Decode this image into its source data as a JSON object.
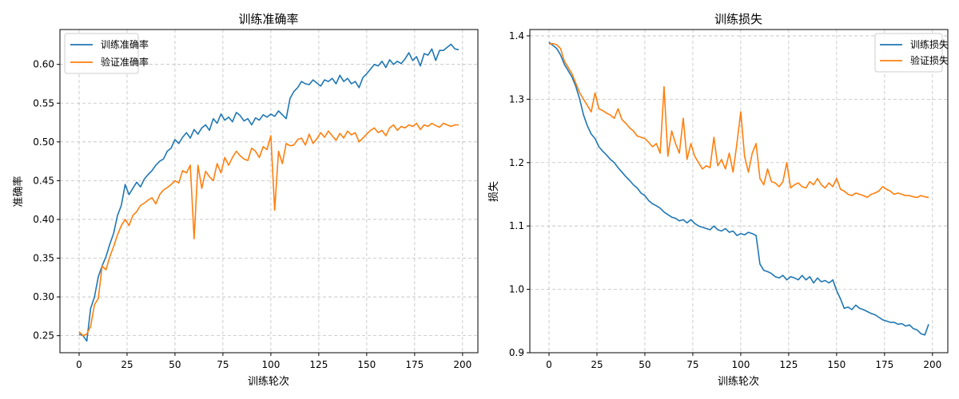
{
  "chart_data": [
    {
      "id": "acc",
      "type": "line",
      "title": "训练准确率",
      "xlabel": "训练轮次",
      "ylabel": "准确率",
      "xlim": [
        -10,
        208
      ],
      "ylim": [
        0.228,
        0.645
      ],
      "xticks": [
        0,
        25,
        50,
        75,
        100,
        125,
        150,
        175,
        200
      ],
      "xtick_labels": [
        "0",
        "25",
        "50",
        "75",
        "100",
        "125",
        "150",
        "175",
        "200"
      ],
      "yticks": [
        0.25,
        0.3,
        0.35,
        0.4,
        0.45,
        0.5,
        0.55,
        0.6
      ],
      "ytick_labels": [
        "0.25",
        "0.30",
        "0.35",
        "0.40",
        "0.45",
        "0.50",
        "0.55",
        "0.60"
      ],
      "grid": true,
      "legend_position": "top-left",
      "series": [
        {
          "name": "训练准确率",
          "color": "#1f77b4",
          "x": [
            0,
            2,
            4,
            6,
            8,
            10,
            12,
            14,
            16,
            18,
            20,
            22,
            24,
            26,
            28,
            30,
            32,
            34,
            36,
            38,
            40,
            42,
            44,
            46,
            48,
            50,
            52,
            54,
            56,
            58,
            60,
            62,
            64,
            66,
            68,
            70,
            72,
            74,
            76,
            78,
            80,
            82,
            84,
            86,
            88,
            90,
            92,
            94,
            96,
            98,
            100,
            102,
            104,
            106,
            108,
            110,
            112,
            114,
            116,
            118,
            120,
            122,
            124,
            126,
            128,
            130,
            132,
            134,
            136,
            138,
            140,
            142,
            144,
            146,
            148,
            150,
            152,
            154,
            156,
            158,
            160,
            162,
            164,
            166,
            168,
            170,
            172,
            174,
            176,
            178,
            180,
            182,
            184,
            186,
            188,
            190,
            192,
            194,
            196,
            198
          ],
          "values": [
            0.252,
            0.25,
            0.243,
            0.285,
            0.3,
            0.326,
            0.34,
            0.352,
            0.368,
            0.382,
            0.405,
            0.418,
            0.445,
            0.432,
            0.44,
            0.448,
            0.442,
            0.452,
            0.458,
            0.463,
            0.47,
            0.475,
            0.478,
            0.488,
            0.492,
            0.503,
            0.498,
            0.506,
            0.512,
            0.505,
            0.516,
            0.51,
            0.518,
            0.522,
            0.515,
            0.53,
            0.524,
            0.536,
            0.528,
            0.532,
            0.526,
            0.538,
            0.534,
            0.527,
            0.53,
            0.522,
            0.531,
            0.528,
            0.535,
            0.532,
            0.536,
            0.533,
            0.54,
            0.535,
            0.53,
            0.556,
            0.565,
            0.57,
            0.578,
            0.575,
            0.574,
            0.58,
            0.576,
            0.572,
            0.58,
            0.578,
            0.582,
            0.575,
            0.586,
            0.578,
            0.582,
            0.575,
            0.578,
            0.57,
            0.583,
            0.588,
            0.594,
            0.6,
            0.598,
            0.604,
            0.596,
            0.606,
            0.6,
            0.604,
            0.601,
            0.607,
            0.615,
            0.605,
            0.61,
            0.598,
            0.614,
            0.612,
            0.62,
            0.605,
            0.618,
            0.618,
            0.622,
            0.626,
            0.62,
            0.619
          ]
        },
        {
          "name": "验证准确率",
          "color": "#ff7f0e",
          "x": [
            0,
            2,
            4,
            6,
            8,
            10,
            12,
            14,
            16,
            18,
            20,
            22,
            24,
            26,
            28,
            30,
            32,
            34,
            36,
            38,
            40,
            42,
            44,
            46,
            48,
            50,
            52,
            54,
            56,
            58,
            60,
            62,
            64,
            66,
            68,
            70,
            72,
            74,
            76,
            78,
            80,
            82,
            84,
            86,
            88,
            90,
            92,
            94,
            96,
            98,
            100,
            102,
            104,
            106,
            108,
            110,
            112,
            114,
            116,
            118,
            120,
            122,
            124,
            126,
            128,
            130,
            132,
            134,
            136,
            138,
            140,
            142,
            144,
            146,
            148,
            150,
            152,
            154,
            156,
            158,
            160,
            162,
            164,
            166,
            168,
            170,
            172,
            174,
            176,
            178,
            180,
            182,
            184,
            186,
            188,
            190,
            192,
            194,
            196,
            198
          ],
          "values": [
            0.255,
            0.25,
            0.252,
            0.262,
            0.29,
            0.298,
            0.34,
            0.335,
            0.352,
            0.365,
            0.38,
            0.392,
            0.4,
            0.392,
            0.405,
            0.41,
            0.418,
            0.421,
            0.425,
            0.428,
            0.42,
            0.432,
            0.438,
            0.441,
            0.445,
            0.45,
            0.447,
            0.463,
            0.46,
            0.47,
            0.375,
            0.47,
            0.44,
            0.462,
            0.455,
            0.45,
            0.472,
            0.46,
            0.48,
            0.47,
            0.48,
            0.488,
            0.482,
            0.478,
            0.476,
            0.492,
            0.488,
            0.48,
            0.494,
            0.49,
            0.508,
            0.412,
            0.488,
            0.472,
            0.498,
            0.495,
            0.496,
            0.503,
            0.505,
            0.496,
            0.51,
            0.498,
            0.504,
            0.512,
            0.506,
            0.514,
            0.508,
            0.502,
            0.511,
            0.505,
            0.514,
            0.509,
            0.512,
            0.5,
            0.505,
            0.51,
            0.515,
            0.518,
            0.512,
            0.515,
            0.508,
            0.518,
            0.522,
            0.515,
            0.52,
            0.518,
            0.522,
            0.52,
            0.524,
            0.516,
            0.522,
            0.52,
            0.524,
            0.521,
            0.519,
            0.524,
            0.522,
            0.52,
            0.522,
            0.522
          ]
        }
      ]
    },
    {
      "id": "loss",
      "type": "line",
      "title": "训练损失",
      "xlabel": "训练轮次",
      "ylabel": "损失",
      "xlim": [
        -10,
        208
      ],
      "ylim": [
        0.9,
        1.41
      ],
      "xticks": [
        0,
        25,
        50,
        75,
        100,
        125,
        150,
        175,
        200
      ],
      "xtick_labels": [
        "0",
        "25",
        "50",
        "75",
        "100",
        "125",
        "150",
        "175",
        "200"
      ],
      "yticks": [
        0.9,
        1.0,
        1.1,
        1.2,
        1.3,
        1.4
      ],
      "ytick_labels": [
        "0.9",
        "1.0",
        "1.1",
        "1.2",
        "1.3",
        "1.4"
      ],
      "grid": true,
      "legend_position": "top-right",
      "series": [
        {
          "name": "训练损失",
          "color": "#1f77b4",
          "x": [
            0,
            2,
            4,
            6,
            8,
            10,
            12,
            14,
            16,
            18,
            20,
            22,
            24,
            26,
            28,
            30,
            32,
            34,
            36,
            38,
            40,
            42,
            44,
            46,
            48,
            50,
            52,
            54,
            56,
            58,
            60,
            62,
            64,
            66,
            68,
            70,
            72,
            74,
            76,
            78,
            80,
            82,
            84,
            86,
            88,
            90,
            92,
            94,
            96,
            98,
            100,
            102,
            104,
            106,
            108,
            110,
            112,
            114,
            116,
            118,
            120,
            122,
            124,
            126,
            128,
            130,
            132,
            134,
            136,
            138,
            140,
            142,
            144,
            146,
            148,
            150,
            152,
            154,
            156,
            158,
            160,
            162,
            164,
            166,
            168,
            170,
            172,
            174,
            176,
            178,
            180,
            182,
            184,
            186,
            188,
            190,
            192,
            194,
            196,
            198
          ],
          "values": [
            1.39,
            1.385,
            1.38,
            1.37,
            1.355,
            1.345,
            1.335,
            1.32,
            1.3,
            1.275,
            1.258,
            1.245,
            1.238,
            1.225,
            1.218,
            1.212,
            1.205,
            1.2,
            1.192,
            1.185,
            1.178,
            1.172,
            1.165,
            1.16,
            1.152,
            1.148,
            1.14,
            1.135,
            1.132,
            1.128,
            1.122,
            1.118,
            1.114,
            1.112,
            1.108,
            1.11,
            1.105,
            1.11,
            1.104,
            1.1,
            1.098,
            1.096,
            1.094,
            1.1,
            1.094,
            1.092,
            1.096,
            1.09,
            1.092,
            1.085,
            1.088,
            1.086,
            1.09,
            1.088,
            1.085,
            1.04,
            1.03,
            1.028,
            1.025,
            1.02,
            1.018,
            1.022,
            1.015,
            1.02,
            1.018,
            1.015,
            1.022,
            1.015,
            1.02,
            1.01,
            1.018,
            1.012,
            1.014,
            1.01,
            1.015,
            0.998,
            0.985,
            0.97,
            0.972,
            0.968,
            0.975,
            0.97,
            0.968,
            0.965,
            0.962,
            0.96,
            0.956,
            0.952,
            0.95,
            0.948,
            0.948,
            0.945,
            0.946,
            0.942,
            0.944,
            0.938,
            0.936,
            0.93,
            0.928,
            0.945
          ]
        },
        {
          "name": "验证损失",
          "color": "#ff7f0e",
          "x": [
            0,
            2,
            4,
            6,
            8,
            10,
            12,
            14,
            16,
            18,
            20,
            22,
            24,
            26,
            28,
            30,
            32,
            34,
            36,
            38,
            40,
            42,
            44,
            46,
            48,
            50,
            52,
            54,
            56,
            58,
            60,
            62,
            64,
            66,
            68,
            70,
            72,
            74,
            76,
            78,
            80,
            82,
            84,
            86,
            88,
            90,
            92,
            94,
            96,
            98,
            100,
            102,
            104,
            106,
            108,
            110,
            112,
            114,
            116,
            118,
            120,
            122,
            124,
            126,
            128,
            130,
            132,
            134,
            136,
            138,
            140,
            142,
            144,
            146,
            148,
            150,
            152,
            154,
            156,
            158,
            160,
            162,
            164,
            166,
            168,
            170,
            172,
            174,
            176,
            178,
            180,
            182,
            184,
            186,
            188,
            190,
            192,
            194,
            196,
            198
          ],
          "values": [
            1.387,
            1.388,
            1.386,
            1.38,
            1.36,
            1.35,
            1.34,
            1.325,
            1.31,
            1.3,
            1.29,
            1.28,
            1.31,
            1.285,
            1.282,
            1.278,
            1.275,
            1.27,
            1.285,
            1.268,
            1.262,
            1.255,
            1.25,
            1.242,
            1.24,
            1.238,
            1.232,
            1.225,
            1.23,
            1.215,
            1.32,
            1.21,
            1.25,
            1.23,
            1.215,
            1.27,
            1.205,
            1.23,
            1.21,
            1.2,
            1.19,
            1.195,
            1.192,
            1.24,
            1.195,
            1.205,
            1.19,
            1.215,
            1.185,
            1.23,
            1.28,
            1.21,
            1.185,
            1.215,
            1.23,
            1.175,
            1.165,
            1.19,
            1.17,
            1.168,
            1.162,
            1.17,
            1.2,
            1.16,
            1.165,
            1.168,
            1.162,
            1.16,
            1.17,
            1.165,
            1.175,
            1.165,
            1.16,
            1.168,
            1.162,
            1.175,
            1.158,
            1.155,
            1.15,
            1.148,
            1.152,
            1.15,
            1.148,
            1.145,
            1.15,
            1.152,
            1.155,
            1.162,
            1.158,
            1.155,
            1.15,
            1.152,
            1.15,
            1.148,
            1.148,
            1.146,
            1.145,
            1.148,
            1.146,
            1.145
          ]
        }
      ]
    }
  ]
}
